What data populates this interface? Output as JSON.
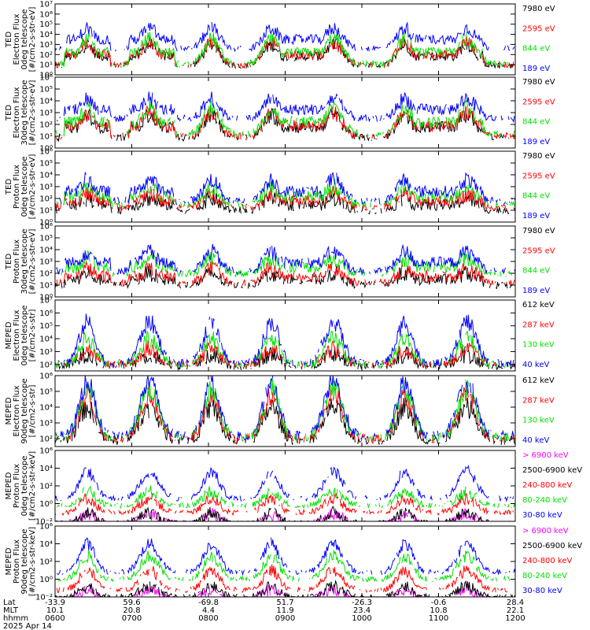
{
  "chart_data": {
    "type": "line",
    "date": "2025 Apr 14",
    "time_range": [
      "0700",
      "1200"
    ],
    "footer": {
      "row_labels": [
        "Lat",
        "MLT",
        "hhmm"
      ],
      "columns": [
        {
          "lat": "-33.9",
          "mlt": "10.1",
          "hhmm": "0600"
        },
        {
          "lat": "59.6",
          "mlt": "20.8",
          "hhmm": "0700"
        },
        {
          "lat": "-69.8",
          "mlt": "4.4",
          "hhmm": "0800"
        },
        {
          "lat": "51.7",
          "mlt": "11.9",
          "hhmm": "0900"
        },
        {
          "lat": "-26.3",
          "mlt": "23.4",
          "hhmm": "1000"
        },
        {
          "lat": "-0.6",
          "mlt": "10.8",
          "hhmm": "1100"
        },
        {
          "lat": "28.4",
          "mlt": "22.1",
          "hhmm": "1200"
        }
      ]
    },
    "panels": [
      {
        "ylabel": [
          "TED",
          "Electron Flux",
          "0deg telescope",
          "[#/cm2-s-str-eV]"
        ],
        "ylim_exp": [
          0,
          7
        ],
        "yticks": [
          "10⁰",
          "10¹",
          "10²",
          "10³",
          "10⁴",
          "10⁵",
          "10⁶",
          "10⁷"
        ],
        "tick_exps": [
          0,
          1,
          2,
          3,
          4,
          5,
          6,
          7
        ],
        "series": [
          {
            "name": "7980 eV",
            "color": "#000000",
            "base": 0.9,
            "burst": 3.0
          },
          {
            "name": "2595 eV",
            "color": "#ff0000",
            "base": 1.0,
            "burst": 3.2
          },
          {
            "name": "844 eV",
            "color": "#00e000",
            "base": 1.1,
            "burst": 3.6
          },
          {
            "name": "189 eV",
            "color": "#0000ff",
            "base": 2.6,
            "burst": 4.6
          }
        ]
      },
      {
        "ylabel": [
          "TED",
          "Electron Flux",
          "30deg telescope",
          "[#/cm2-s-str-eV]"
        ],
        "ylim_exp": [
          0,
          6
        ],
        "yticks": [
          "10⁰",
          "10¹",
          "10²",
          "10³",
          "10⁴",
          "10⁵",
          "10⁶"
        ],
        "tick_exps": [
          0,
          1,
          2,
          3,
          4,
          5,
          6
        ],
        "series": [
          {
            "name": "7980 eV",
            "color": "#000000",
            "base": 0.9,
            "burst": 2.8
          },
          {
            "name": "2595 eV",
            "color": "#ff0000",
            "base": 1.0,
            "burst": 3.0
          },
          {
            "name": "844 eV",
            "color": "#00e000",
            "base": 1.2,
            "burst": 3.4
          },
          {
            "name": "189 eV",
            "color": "#0000ff",
            "base": 2.5,
            "burst": 4.2
          }
        ]
      },
      {
        "ylabel": [
          "TED",
          "Proton Flux",
          "0deg telescope",
          "[#/cm2-s-str-eV]"
        ],
        "ylim_exp": [
          0,
          6
        ],
        "yticks": [
          "10⁰",
          "10¹",
          "10²",
          "10³",
          "10⁴",
          "10⁵",
          "10⁶"
        ],
        "tick_exps": [
          0,
          1,
          2,
          3,
          4,
          5,
          6
        ],
        "series": [
          {
            "name": "7980 eV",
            "color": "#000000",
            "base": 1.0,
            "burst": 2.0
          },
          {
            "name": "2595 eV",
            "color": "#ff0000",
            "base": 1.3,
            "burst": 2.4
          },
          {
            "name": "844 eV",
            "color": "#00e000",
            "base": 1.5,
            "burst": 3.0
          },
          {
            "name": "189 eV",
            "color": "#0000ff",
            "base": 1.8,
            "burst": 3.6
          }
        ]
      },
      {
        "ylabel": [
          "TED",
          "Proton Flux",
          "30deg telescope",
          "[#/cm2-s-str-eV]"
        ],
        "ylim_exp": [
          0,
          6
        ],
        "yticks": [
          "10⁰",
          "10¹",
          "10²",
          "10³",
          "10⁴",
          "10⁵",
          "10⁶"
        ],
        "tick_exps": [
          0,
          1,
          2,
          3,
          4,
          5,
          6
        ],
        "series": [
          {
            "name": "7980 eV",
            "color": "#000000",
            "base": 1.0,
            "burst": 2.0
          },
          {
            "name": "2595 eV",
            "color": "#ff0000",
            "base": 1.2,
            "burst": 2.4
          },
          {
            "name": "844 eV",
            "color": "#00e000",
            "base": 2.0,
            "burst": 3.2
          },
          {
            "name": "189 eV",
            "color": "#0000ff",
            "base": 2.2,
            "burst": 3.8
          }
        ]
      },
      {
        "ylabel": [
          "MEPED",
          "Electron Flux",
          "0deg telescope",
          "[#/cm2-s-str]"
        ],
        "ylim_exp": [
          1.5,
          7
        ],
        "yticks": [
          "10²",
          "10³",
          "10⁴",
          "10⁵",
          "10⁶",
          "10⁷"
        ],
        "tick_exps": [
          2,
          3,
          4,
          5,
          6,
          7
        ],
        "series": [
          {
            "name": "612 keV",
            "color": "#000000",
            "base": 1.9,
            "burst": 2.8
          },
          {
            "name": "287 keV",
            "color": "#ff0000",
            "base": 2.0,
            "burst": 3.2
          },
          {
            "name": "130 keV",
            "color": "#00e000",
            "base": 2.0,
            "burst": 4.0
          },
          {
            "name": "40 keV",
            "color": "#0000ff",
            "base": 2.1,
            "burst": 5.3
          }
        ]
      },
      {
        "ylabel": [
          "MEPED",
          "Electron Flux",
          "90deg telescope",
          "[#/cm2-s-str]"
        ],
        "ylim_exp": [
          1.5,
          6
        ],
        "yticks": [
          "10²",
          "10³",
          "10⁴",
          "10⁵",
          "10⁶"
        ],
        "tick_exps": [
          2,
          3,
          4,
          5,
          6
        ],
        "series": [
          {
            "name": "612 keV",
            "color": "#000000",
            "base": 1.9,
            "burst": 4.0
          },
          {
            "name": "287 keV",
            "color": "#ff0000",
            "base": 2.0,
            "burst": 4.8
          },
          {
            "name": "130 keV",
            "color": "#00e000",
            "base": 2.1,
            "burst": 5.2
          },
          {
            "name": "40 keV",
            "color": "#0000ff",
            "base": 2.2,
            "burst": 5.6
          }
        ]
      },
      {
        "ylabel": [
          "MEPED",
          "Proton Flux",
          "0deg telescope",
          "[#/cm2-s-str-keV]"
        ],
        "ylim_exp": [
          -2,
          6
        ],
        "yticks": [
          "10⁻²",
          "10⁰",
          "10²",
          "10⁴",
          "10⁶"
        ],
        "tick_exps": [
          -2,
          0,
          2,
          4,
          6
        ],
        "series": [
          {
            "name": "> 6900 keV",
            "color": "#ff00ff",
            "base": -2.2,
            "burst": -1.2
          },
          {
            "name": "2500-6900 keV",
            "color": "#000000",
            "base": -2.2,
            "burst": -1.0
          },
          {
            "name": "240-800 keV",
            "color": "#ff0000",
            "base": -1.0,
            "burst": 0.6
          },
          {
            "name": "80-240 keV",
            "color": "#00e000",
            "base": -0.2,
            "burst": 1.4
          },
          {
            "name": "30-80 keV",
            "color": "#0000ff",
            "base": 0.6,
            "burst": 3.6
          }
        ]
      },
      {
        "ylabel": [
          "MEPED",
          "Proton Flux",
          "90deg telescope",
          "[#/cm2-s-str-keV]"
        ],
        "ylim_exp": [
          -2,
          6
        ],
        "yticks": [
          "10⁻²",
          "10⁰",
          "10²",
          "10⁴",
          "10⁶"
        ],
        "tick_exps": [
          -2,
          0,
          2,
          4,
          6
        ],
        "series": [
          {
            "name": "> 6900 keV",
            "color": "#ff00ff",
            "base": -2.2,
            "burst": -1.2
          },
          {
            "name": "2500-6900 keV",
            "color": "#000000",
            "base": -2.0,
            "burst": -0.8
          },
          {
            "name": "240-800 keV",
            "color": "#ff0000",
            "base": -1.2,
            "burst": 1.0
          },
          {
            "name": "80-240 keV",
            "color": "#00e000",
            "base": 0.0,
            "burst": 2.6
          },
          {
            "name": "30-80 keV",
            "color": "#0000ff",
            "base": 0.8,
            "burst": 4.0
          }
        ]
      }
    ]
  }
}
